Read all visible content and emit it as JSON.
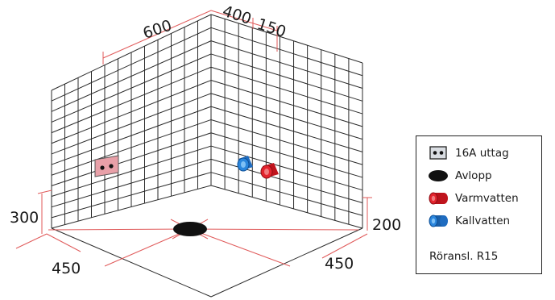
{
  "dimensions": {
    "top_left": "600",
    "top_mid": "400",
    "top_right": "150",
    "left_height": "300",
    "right_height": "200",
    "bottom_left": "450",
    "bottom_right": "450"
  },
  "legend": {
    "items": [
      {
        "icon": "outlet-icon",
        "label": "16A uttag"
      },
      {
        "icon": "drain-icon",
        "label": "Avlopp"
      },
      {
        "icon": "hot-water-pipe-icon",
        "label": "Varmvatten"
      },
      {
        "icon": "cold-water-pipe-icon",
        "label": "Kallvatten"
      }
    ],
    "note": "Röransl. R15"
  },
  "colors": {
    "grid": "#2a2a2a",
    "dimension_line": "#e05a5a",
    "outlet": "#e8a0a8",
    "hot": "#d8202a",
    "cold": "#2a7fd4"
  }
}
